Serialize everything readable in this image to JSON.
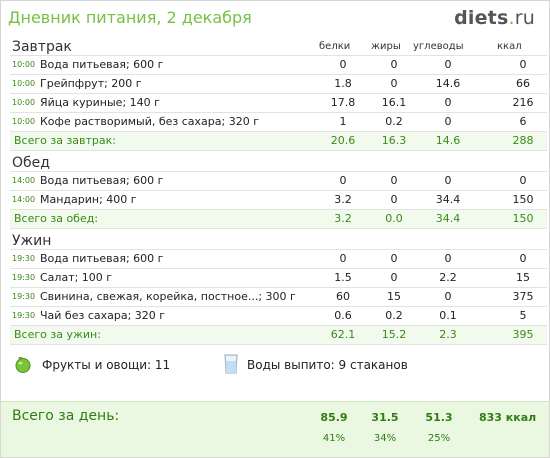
{
  "header": {
    "title": "Дневник питания, 2 декабря",
    "logo_main": "diets",
    "logo_dot": ".",
    "logo_tld": "ru"
  },
  "columns": [
    "белки",
    "жиры",
    "углеводы",
    "ккал"
  ],
  "meals": [
    {
      "name": "Завтрак",
      "items": [
        {
          "time": "10:00",
          "food": "Вода питьевая; 600 г",
          "p": "0",
          "f": "0",
          "c": "0",
          "kcal": "0"
        },
        {
          "time": "10:00",
          "food": "Грейпфрут; 200 г",
          "p": "1.8",
          "f": "0",
          "c": "14.6",
          "kcal": "66"
        },
        {
          "time": "10:00",
          "food": "Яйца куриные; 140 г",
          "p": "17.8",
          "f": "16.1",
          "c": "0",
          "kcal": "216"
        },
        {
          "time": "10:00",
          "food": "Кофе растворимый, без сахара; 320 г",
          "p": "1",
          "f": "0.2",
          "c": "0",
          "kcal": "6"
        }
      ],
      "total": {
        "label": "Всего за завтрак:",
        "p": "20.6",
        "f": "16.3",
        "c": "14.6",
        "kcal": "288"
      }
    },
    {
      "name": "Обед",
      "items": [
        {
          "time": "14:00",
          "food": "Вода питьевая; 600 г",
          "p": "0",
          "f": "0",
          "c": "0",
          "kcal": "0"
        },
        {
          "time": "14:00",
          "food": "Мандарин; 400 г",
          "p": "3.2",
          "f": "0",
          "c": "34.4",
          "kcal": "150"
        }
      ],
      "total": {
        "label": "Всего за обед:",
        "p": "3.2",
        "f": "0.0",
        "c": "34.4",
        "kcal": "150"
      }
    },
    {
      "name": "Ужин",
      "items": [
        {
          "time": "19:30",
          "food": "Вода питьевая; 600 г",
          "p": "0",
          "f": "0",
          "c": "0",
          "kcal": "0"
        },
        {
          "time": "19:30",
          "food": "Салат; 100 г",
          "p": "1.5",
          "f": "0",
          "c": "2.2",
          "kcal": "15"
        },
        {
          "time": "19:30",
          "food": "Свинина, свежая, корейка, постное...; 300 г",
          "p": "60",
          "f": "15",
          "c": "0",
          "kcal": "375"
        },
        {
          "time": "19:30",
          "food": "Чай без сахара; 320 г",
          "p": "0.6",
          "f": "0.2",
          "c": "0.1",
          "kcal": "5"
        }
      ],
      "total": {
        "label": "Всего за ужин:",
        "p": "62.1",
        "f": "15.2",
        "c": "2.3",
        "kcal": "395"
      }
    }
  ],
  "extras": {
    "fruit_label": "Фрукты и овощи: 11",
    "water_label": "Воды выпито: 9 стаканов",
    "fruit_icon": "apple-icon",
    "water_icon": "glass-icon"
  },
  "day_total": {
    "label": "Всего за день:",
    "p": "85.9",
    "f": "31.5",
    "c": "51.3",
    "kcal": "833 ккал",
    "p_pct": "41%",
    "f_pct": "34%",
    "c_pct": "25%"
  },
  "colors": {
    "accent": "#76c043",
    "accent_dark": "#3a8a1a",
    "total_bg": "#f1faec",
    "day_bg": "#eaf7e1"
  }
}
